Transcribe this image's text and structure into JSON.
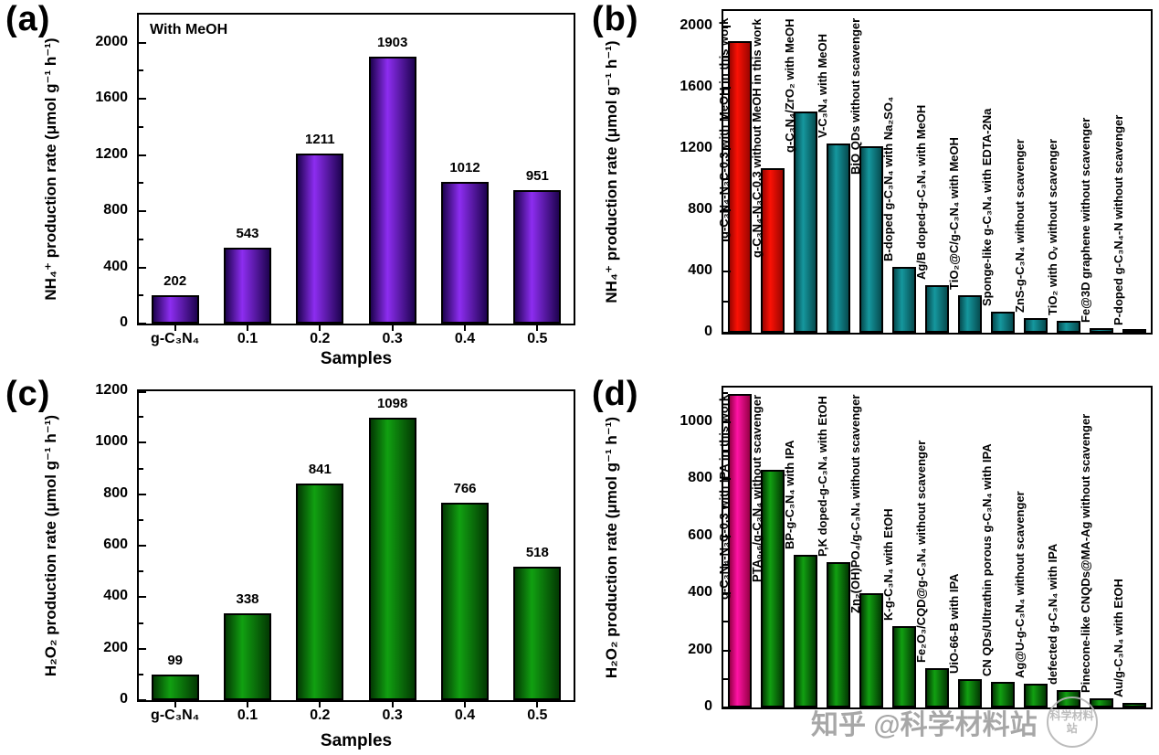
{
  "watermark": {
    "text": "知乎 @科学材料站",
    "seal_text": "科学材料站"
  },
  "colors": {
    "purple": [
      "#1e0350",
      "#8d2df0"
    ],
    "teal": [
      "#064c50",
      "#15979e"
    ],
    "red": [
      "#9a0500",
      "#fb1105"
    ],
    "green": [
      "#033903",
      "#11a011"
    ],
    "magenta": [
      "#970045",
      "#ff13a4"
    ]
  },
  "chart_data": [
    {
      "id": "a",
      "panel_label": "(a)",
      "type": "bar",
      "annotation": "With MeOH",
      "ylabel": "NH₄⁺ production rate (μmol g⁻¹ h⁻¹)",
      "xlabel": "Samples",
      "ymax": 2200,
      "yticks": [
        0,
        400,
        800,
        1200,
        1600,
        2000
      ],
      "minor_step": 200,
      "categories": [
        "g-C₃N₄",
        "0.1",
        "0.2",
        "0.3",
        "0.4",
        "0.5"
      ],
      "values": [
        202,
        543,
        1211,
        1903,
        1012,
        951
      ],
      "bar_colors": "purple",
      "show_values": true,
      "rotated_labels": false,
      "legend": "none",
      "grid": false
    },
    {
      "id": "b",
      "panel_label": "(b)",
      "type": "bar",
      "annotation": "",
      "ylabel": "NH₄⁺ production rate (μmol g⁻¹ h⁻¹)",
      "xlabel": "",
      "ymax": 2100,
      "yticks": [
        0,
        400,
        800,
        1200,
        1600,
        2000
      ],
      "minor_step": 200,
      "categories": [
        "g-C₃N₄-N₃C-0.3 with MeOH in this work",
        "g-C₃N₄-N₃C-0.3 without MeOH in this work",
        "g-C₃N₄/ZrO₂ with MeOH",
        "V-C₃N₄ with MeOH",
        "BiO QDs without scavenger",
        "B-doped g-C₃N₄ with Na₂SO₄",
        "Ag/B doped-g-C₃N₄ with MeOH",
        "TiO₂@C/g-C₃N₄ with MeOH",
        "Sponge-like g-C₃N₄ with EDTA-2Na",
        "ZnS-g-C₃N₄ without scavenger",
        "TiO₂ with Oᵥ without scavenger",
        "Fe@3D graphene without scavenger",
        "P-doped g-C₃N₄-N without scavenger"
      ],
      "values": [
        1903,
        1076,
        1445,
        1235,
        1220,
        430,
        310,
        245,
        140,
        98,
        75,
        28,
        12
      ],
      "bar_colors": [
        "red",
        "red",
        "teal",
        "teal",
        "teal",
        "teal",
        "teal",
        "teal",
        "teal",
        "teal",
        "teal",
        "teal",
        "teal"
      ],
      "show_values": false,
      "rotated_labels": true,
      "legend": "none",
      "grid": false
    },
    {
      "id": "c",
      "panel_label": "(c)",
      "type": "bar",
      "annotation": "",
      "ylabel": "H₂O₂ production rate (μmol g⁻¹ h⁻¹)",
      "xlabel": "Samples",
      "ymax": 1200,
      "yticks": [
        0,
        200,
        400,
        600,
        800,
        1000,
        1200
      ],
      "minor_step": 100,
      "categories": [
        "g-C₃N₄",
        "0.1",
        "0.2",
        "0.3",
        "0.4",
        "0.5"
      ],
      "values": [
        99,
        338,
        841,
        1098,
        766,
        518
      ],
      "bar_colors": "green",
      "show_values": true,
      "rotated_labels": false,
      "legend": "none",
      "grid": false
    },
    {
      "id": "d",
      "panel_label": "(d)",
      "type": "bar",
      "annotation": "",
      "ylabel": "H₂O₂ production rate (μmol g⁻¹ h⁻¹)",
      "xlabel": "",
      "ymax": 1120,
      "yticks": [
        0,
        200,
        400,
        600,
        800,
        1000
      ],
      "minor_step": 100,
      "categories": [
        "g-C₃N₄-N₃C-0.3 with IPA in this work",
        "PTA₀.₆/g-C₃N₄ without scavenger",
        "BP-g-C₃N₄ with IPA",
        "P,K doped-g-C₃N₄ with EtOH",
        "Zn₂(OH)PO₄/g-C₃N₄ without scavenger",
        "K-g-C₃N₄ with EtOH",
        "Fe₂O₃/CQD@g-C₃N₄ without scavenger",
        "UiO-66-B with IPA",
        "CN QDs/Ultrathin porous g-C₃N₄ with IPA",
        "Ag@U-g-C₃N₄ without scavenger",
        "defected g-C₃N₄ with IPA",
        "Pinecone-like CNQDs@MA-Ag without scavenger",
        "Au/g-C₃N₄ with EtOH"
      ],
      "values": [
        1098,
        832,
        535,
        508,
        400,
        286,
        136,
        98,
        90,
        84,
        60,
        32,
        15
      ],
      "bar_colors": [
        "magenta",
        "green",
        "green",
        "green",
        "green",
        "green",
        "green",
        "green",
        "green",
        "green",
        "green",
        "green",
        "green"
      ],
      "show_values": false,
      "rotated_labels": true,
      "legend": "none",
      "grid": false
    }
  ]
}
